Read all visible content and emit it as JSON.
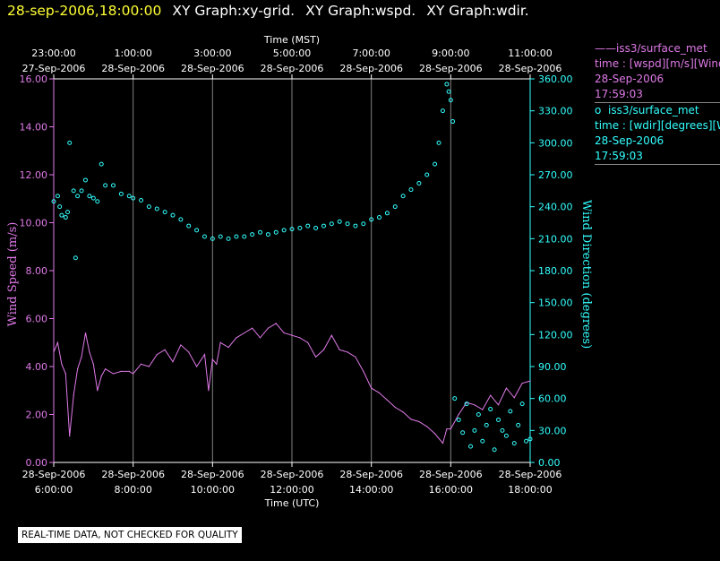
{
  "header": {
    "timestamp": "28-sep-2006,18:00:00",
    "graphs": [
      "XY Graph:xy-grid.",
      "XY Graph:wspd.",
      "XY Graph:wdir."
    ]
  },
  "legend": {
    "series1": {
      "line": "——iss3/surface_met",
      "field": "time : [wspd][m/s][Wind",
      "date": "28-Sep-2006",
      "time": "17:59:03"
    },
    "series2": {
      "marker": "o",
      "line": "iss3/surface_met",
      "field": "time : [wdir][degrees][Wi",
      "date": "28-Sep-2006",
      "time": "17:59:03"
    }
  },
  "footer": {
    "note": "REAL-TIME DATA, NOT CHECKED FOR QUALITY"
  },
  "chart_data": {
    "type": "line",
    "x_top_title": "Time (MST)",
    "x_bottom_title": "Time (UTC)",
    "ylabel_left": "Wind Speed (m/s)",
    "ylabel_right": "Wind Direction (degrees)",
    "ylim_left": [
      0,
      16
    ],
    "ylim_right": [
      0,
      360
    ],
    "xlim_utc_hours": [
      6.0,
      18.0
    ],
    "grid": "vertical lines at bottom ticks",
    "x_bottom_ticks": [
      {
        "hour": 6,
        "date": "28-Sep-2006",
        "time": "6:00:00"
      },
      {
        "hour": 8,
        "date": "28-Sep-2006",
        "time": "8:00:00"
      },
      {
        "hour": 10,
        "date": "28-Sep-2006",
        "time": "10:00:00"
      },
      {
        "hour": 12,
        "date": "28-Sep-2006",
        "time": "12:00:00"
      },
      {
        "hour": 14,
        "date": "28-Sep-2006",
        "time": "14:00:00"
      },
      {
        "hour": 16,
        "date": "28-Sep-2006",
        "time": "16:00:00"
      },
      {
        "hour": 18,
        "date": "28-Sep-2006",
        "time": "18:00:00"
      }
    ],
    "x_top_ticks": [
      {
        "hour": 6,
        "date": "27-Sep-2006",
        "time": "23:00:00"
      },
      {
        "hour": 8,
        "date": "28-Sep-2006",
        "time": "1:00:00"
      },
      {
        "hour": 10,
        "date": "28-Sep-2006",
        "time": "3:00:00"
      },
      {
        "hour": 12,
        "date": "28-Sep-2006",
        "time": "5:00:00"
      },
      {
        "hour": 14,
        "date": "28-Sep-2006",
        "time": "7:00:00"
      },
      {
        "hour": 16,
        "date": "28-Sep-2006",
        "time": "9:00:00"
      },
      {
        "hour": 18,
        "date": "28-Sep-2006",
        "time": "11:00:00"
      }
    ],
    "y_left_ticks": [
      "0.00",
      "2.00",
      "4.00",
      "6.00",
      "8.00",
      "10.00",
      "12.00",
      "14.00",
      "16.00"
    ],
    "y_right_ticks": [
      "0.00",
      "30.00",
      "60.00",
      "90.00",
      "120.00",
      "150.00",
      "180.00",
      "210.00",
      "240.00",
      "270.00",
      "300.00",
      "330.00",
      "360.00"
    ],
    "colors": {
      "wspd": "#e07ae8",
      "wdir": "#33ffff",
      "grid": "#808080",
      "axis": "#ffffff"
    },
    "series": [
      {
        "name": "iss3/surface_met time : [wspd][m/s]",
        "axis": "left",
        "style": "line",
        "x": [
          6.0,
          6.1,
          6.2,
          6.3,
          6.4,
          6.5,
          6.6,
          6.7,
          6.8,
          6.9,
          7.0,
          7.1,
          7.2,
          7.3,
          7.5,
          7.7,
          7.9,
          8.0,
          8.2,
          8.4,
          8.6,
          8.8,
          9.0,
          9.2,
          9.4,
          9.6,
          9.8,
          9.9,
          10.0,
          10.1,
          10.2,
          10.4,
          10.6,
          10.8,
          11.0,
          11.2,
          11.4,
          11.6,
          11.8,
          12.0,
          12.2,
          12.4,
          12.6,
          12.8,
          13.0,
          13.2,
          13.4,
          13.6,
          13.8,
          14.0,
          14.2,
          14.4,
          14.6,
          14.8,
          15.0,
          15.2,
          15.4,
          15.6,
          15.8,
          15.9,
          16.0,
          16.2,
          16.4,
          16.6,
          16.8,
          17.0,
          17.2,
          17.4,
          17.6,
          17.8,
          18.0
        ],
        "y": [
          4.6,
          5.0,
          4.1,
          3.7,
          1.1,
          2.8,
          3.9,
          4.4,
          5.4,
          4.6,
          4.1,
          3.0,
          3.6,
          3.9,
          3.7,
          3.8,
          3.8,
          3.7,
          4.1,
          4.0,
          4.5,
          4.7,
          4.2,
          4.9,
          4.6,
          4.0,
          4.5,
          3.0,
          4.3,
          4.1,
          5.0,
          4.8,
          5.2,
          5.4,
          5.6,
          5.2,
          5.6,
          5.8,
          5.4,
          5.3,
          5.2,
          5.0,
          4.4,
          4.7,
          5.3,
          4.7,
          4.6,
          4.4,
          3.8,
          3.1,
          2.9,
          2.6,
          2.3,
          2.1,
          1.8,
          1.7,
          1.5,
          1.2,
          0.8,
          1.4,
          1.4,
          2.0,
          2.5,
          2.4,
          2.2,
          2.8,
          2.4,
          3.1,
          2.7,
          3.3,
          3.4
        ]
      },
      {
        "name": "iss3/surface_met time : [wdir][degrees]",
        "axis": "right",
        "style": "markers",
        "x": [
          6.0,
          6.1,
          6.15,
          6.2,
          6.3,
          6.35,
          6.4,
          6.5,
          6.55,
          6.6,
          6.7,
          6.8,
          6.9,
          7.0,
          7.1,
          7.2,
          7.3,
          7.5,
          7.7,
          7.9,
          8.0,
          8.2,
          8.4,
          8.6,
          8.8,
          9.0,
          9.2,
          9.4,
          9.6,
          9.8,
          10.0,
          10.2,
          10.4,
          10.6,
          10.8,
          11.0,
          11.2,
          11.4,
          11.6,
          11.8,
          12.0,
          12.2,
          12.4,
          12.6,
          12.8,
          13.0,
          13.2,
          13.4,
          13.6,
          13.8,
          14.0,
          14.2,
          14.4,
          14.6,
          14.8,
          15.0,
          15.2,
          15.4,
          15.6,
          15.7,
          15.8,
          15.9,
          15.95,
          16.0,
          16.05,
          16.1,
          16.2,
          16.3,
          16.4,
          16.5,
          16.6,
          16.7,
          16.8,
          16.9,
          17.0,
          17.1,
          17.2,
          17.3,
          17.4,
          17.5,
          17.6,
          17.7,
          17.8,
          17.9,
          18.0
        ],
        "y": [
          245,
          250,
          240,
          232,
          230,
          235,
          300,
          255,
          192,
          250,
          255,
          265,
          250,
          248,
          245,
          280,
          260,
          260,
          252,
          250,
          248,
          246,
          240,
          238,
          235,
          232,
          228,
          222,
          218,
          212,
          210,
          212,
          210,
          212,
          212,
          214,
          216,
          214,
          216,
          218,
          219,
          220,
          222,
          220,
          222,
          224,
          226,
          224,
          222,
          224,
          228,
          230,
          234,
          240,
          250,
          256,
          262,
          270,
          280,
          300,
          330,
          355,
          348,
          340,
          320,
          60,
          40,
          28,
          55,
          15,
          30,
          45,
          20,
          35,
          50,
          12,
          40,
          30,
          25,
          48,
          18,
          35,
          55,
          20,
          22
        ]
      }
    ]
  }
}
